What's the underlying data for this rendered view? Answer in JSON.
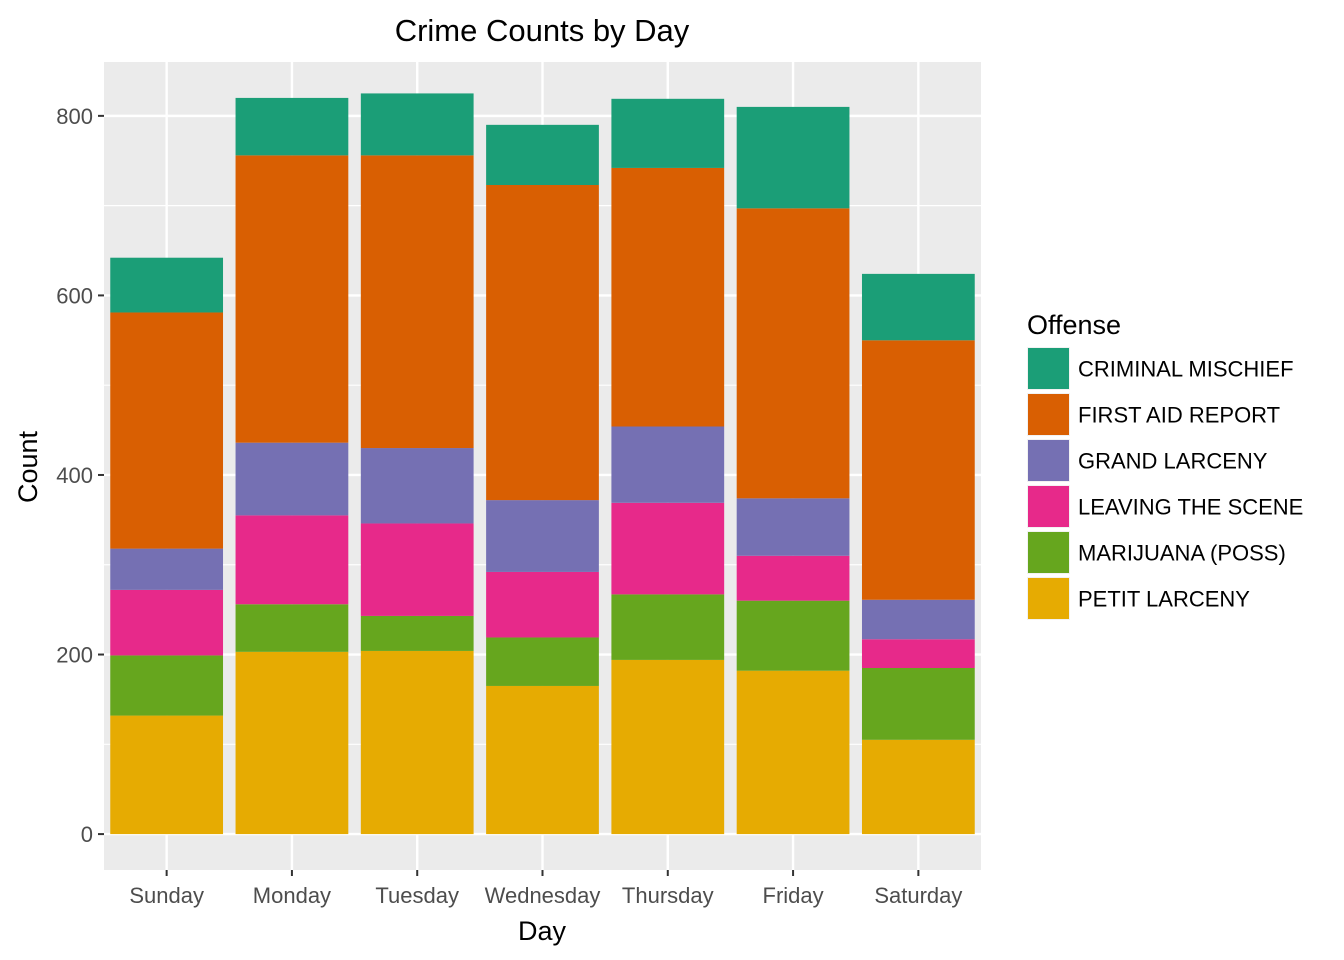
{
  "chart_data": {
    "type": "bar",
    "stacked": true,
    "title": "Crime Counts by Day",
    "xlabel": "Day",
    "ylabel": "Count",
    "ylim": [
      -40,
      860
    ],
    "yticks": [
      0,
      200,
      400,
      600,
      800
    ],
    "grid": true,
    "legend_position": "right",
    "legend_title": "Offense",
    "categories": [
      "Sunday",
      "Monday",
      "Tuesday",
      "Wednesday",
      "Thursday",
      "Friday",
      "Saturday"
    ],
    "series": [
      {
        "name": "PETIT LARCENY",
        "color": "#E6AB02",
        "values": [
          132,
          203,
          204,
          165,
          194,
          182,
          105
        ]
      },
      {
        "name": "MARIJUANA (POSS)",
        "color": "#66A61E",
        "values": [
          67,
          53,
          39,
          54,
          73,
          78,
          80
        ]
      },
      {
        "name": "LEAVING THE SCENE",
        "color": "#E7298A",
        "values": [
          73,
          99,
          103,
          73,
          102,
          50,
          32
        ]
      },
      {
        "name": "GRAND LARCENY",
        "color": "#7570B3",
        "values": [
          46,
          81,
          84,
          80,
          85,
          64,
          44
        ]
      },
      {
        "name": "FIRST AID REPORT",
        "color": "#D95F02",
        "values": [
          263,
          320,
          326,
          351,
          288,
          323,
          289
        ]
      },
      {
        "name": "CRIMINAL MISCHIEF",
        "color": "#1B9E77",
        "values": [
          61,
          64,
          69,
          67,
          77,
          113,
          74
        ]
      }
    ],
    "legend_order": [
      "CRIMINAL MISCHIEF",
      "FIRST AID REPORT",
      "GRAND LARCENY",
      "LEAVING THE SCENE",
      "MARIJUANA (POSS)",
      "PETIT LARCENY"
    ],
    "panel_background": "#EBEBEB",
    "gridline_color": "#FFFFFF"
  }
}
